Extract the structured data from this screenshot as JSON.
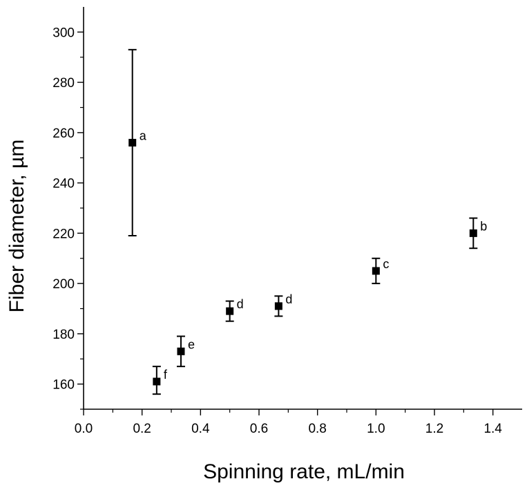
{
  "chart_data": {
    "type": "scatter",
    "xlabel": "Spinning rate,   mL/min",
    "ylabel": "Fiber diameter, µm",
    "xlim": [
      0.0,
      1.5
    ],
    "ylim": [
      150,
      310
    ],
    "x_ticks": [
      "0.0",
      "0.2",
      "0.4",
      "0.6",
      "0.8",
      "1.0",
      "1.2",
      "1.4"
    ],
    "y_ticks": [
      "160",
      "180",
      "200",
      "220",
      "240",
      "260",
      "280",
      "300"
    ],
    "grid": false,
    "series": [
      {
        "points": [
          {
            "x": 0.167,
            "y": 256,
            "err_low": 219,
            "err_high": 293,
            "label": "a"
          },
          {
            "x": 0.25,
            "y": 161,
            "err_low": 156,
            "err_high": 167,
            "label": "f"
          },
          {
            "x": 0.333,
            "y": 173,
            "err_low": 167,
            "err_high": 179,
            "label": "e"
          },
          {
            "x": 0.5,
            "y": 189,
            "err_low": 185,
            "err_high": 193,
            "label": "d"
          },
          {
            "x": 0.667,
            "y": 191,
            "err_low": 187,
            "err_high": 195,
            "label": "d"
          },
          {
            "x": 1.0,
            "y": 205,
            "err_low": 200,
            "err_high": 210,
            "label": "c"
          },
          {
            "x": 1.333,
            "y": 220,
            "err_low": 214,
            "err_high": 226,
            "label": "b"
          }
        ]
      }
    ]
  }
}
